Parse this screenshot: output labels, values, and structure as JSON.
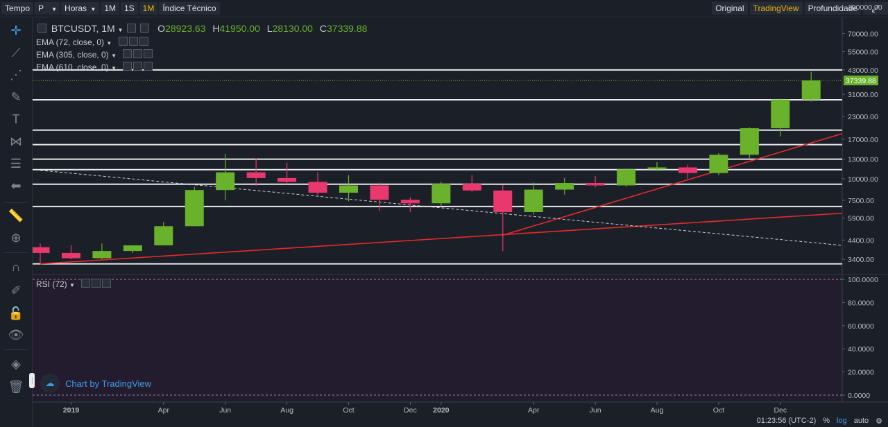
{
  "toolbar": {
    "tempo": "Tempo",
    "p": "P",
    "horas": "Horas",
    "m1": "1M",
    "s1": "1S",
    "mm1": "1M",
    "indice": "Índice Técnico",
    "original": "Original",
    "tradingview": "TradingView",
    "profundidade": "Profundidade"
  },
  "legend": {
    "symbol": "BTCUSDT, 1M",
    "o_label": "O",
    "o_value": "28923.63",
    "h_label": "H",
    "h_value": "41950.00",
    "l_label": "L",
    "l_value": "28130.00",
    "c_label": "C",
    "c_value": "37339.88",
    "ema1": "EMA (72, close, 0)",
    "ema2": "EMA (305, close, 0)",
    "ema3": "EMA (610, close, 0)",
    "rsi": "RSI (72)"
  },
  "watermark": "Chart by TradingView",
  "bottom": {
    "time": "01:23:56 (UTC-2)",
    "percent": "%",
    "log": "log",
    "auto": "auto"
  },
  "colors": {
    "up": "#6ab12c",
    "down": "#e9386d",
    "trend": "#e8292b",
    "accent": "#f0b90b",
    "link": "#3d9ee8"
  },
  "chart_data": {
    "type": "candlestick",
    "scale": "log",
    "symbol": "BTCUSDT",
    "interval": "1M",
    "y_ticks": [
      100000,
      70000,
      55000,
      43000,
      31000,
      23000,
      17000,
      13000,
      10000,
      7500,
      5900,
      4400,
      3400
    ],
    "y_tick_labels": [
      "100000.00",
      "70000.00",
      "55000.00",
      "43000.00",
      "31000.00",
      "23000.00",
      "17000.00",
      "13000.00",
      "10000.00",
      "7500.00",
      "5900.00",
      "4400.00",
      "3400.00"
    ],
    "last_price_label": "37339.88",
    "x_labels": [
      "2019",
      "Apr",
      "Jun",
      "Aug",
      "Oct",
      "Dec",
      "2020",
      "Apr",
      "Jun",
      "Aug",
      "Oct",
      "Dec"
    ],
    "candles": [
      {
        "date": "2018-12",
        "o": 4000,
        "h": 4200,
        "l": 3200,
        "c": 3700
      },
      {
        "date": "2019-01",
        "o": 3700,
        "h": 4100,
        "l": 3400,
        "c": 3450
      },
      {
        "date": "2019-02",
        "o": 3450,
        "h": 4200,
        "l": 3400,
        "c": 3800
      },
      {
        "date": "2019-03",
        "o": 3800,
        "h": 4100,
        "l": 3700,
        "c": 4100
      },
      {
        "date": "2019-04",
        "o": 4100,
        "h": 5600,
        "l": 4100,
        "c": 5300
      },
      {
        "date": "2019-05",
        "o": 5300,
        "h": 9000,
        "l": 5300,
        "c": 8600
      },
      {
        "date": "2019-06",
        "o": 8600,
        "h": 14000,
        "l": 7500,
        "c": 10900
      },
      {
        "date": "2019-07",
        "o": 10900,
        "h": 13200,
        "l": 9100,
        "c": 10100
      },
      {
        "date": "2019-08",
        "o": 10100,
        "h": 12400,
        "l": 9300,
        "c": 9600
      },
      {
        "date": "2019-09",
        "o": 9600,
        "h": 10900,
        "l": 7900,
        "c": 8300
      },
      {
        "date": "2019-10",
        "o": 8300,
        "h": 10500,
        "l": 7400,
        "c": 9150
      },
      {
        "date": "2019-11",
        "o": 9150,
        "h": 9500,
        "l": 6500,
        "c": 7550
      },
      {
        "date": "2019-12",
        "o": 7550,
        "h": 7800,
        "l": 6400,
        "c": 7200
      },
      {
        "date": "2020-01",
        "o": 7200,
        "h": 9600,
        "l": 6900,
        "c": 9350
      },
      {
        "date": "2020-02",
        "o": 9350,
        "h": 10500,
        "l": 8400,
        "c": 8550
      },
      {
        "date": "2020-03",
        "o": 8550,
        "h": 9200,
        "l": 3800,
        "c": 6400
      },
      {
        "date": "2020-04",
        "o": 6400,
        "h": 9500,
        "l": 6200,
        "c": 8650
      },
      {
        "date": "2020-05",
        "o": 8650,
        "h": 10100,
        "l": 8100,
        "c": 9450
      },
      {
        "date": "2020-06",
        "o": 9450,
        "h": 10400,
        "l": 8900,
        "c": 9150
      },
      {
        "date": "2020-07",
        "o": 9150,
        "h": 11500,
        "l": 9000,
        "c": 11350
      },
      {
        "date": "2020-08",
        "o": 11350,
        "h": 12500,
        "l": 11100,
        "c": 11650
      },
      {
        "date": "2020-09",
        "o": 11650,
        "h": 12100,
        "l": 10000,
        "c": 10800
      },
      {
        "date": "2020-10",
        "o": 10800,
        "h": 14100,
        "l": 10500,
        "c": 13800
      },
      {
        "date": "2020-11",
        "o": 13800,
        "h": 19900,
        "l": 13200,
        "c": 19700
      },
      {
        "date": "2020-12",
        "o": 19700,
        "h": 29300,
        "l": 17600,
        "c": 28900
      },
      {
        "date": "2021-01",
        "o": 28923.63,
        "h": 41950,
        "l": 28130,
        "c": 37339.88
      }
    ],
    "horizontal_levels": [
      3200,
      6900,
      9300,
      11300,
      13000,
      15800,
      19200,
      28800,
      43000
    ],
    "trendlines": [
      {
        "style": "solid",
        "color": "red",
        "from": {
          "date": "2018-12",
          "price": 3200
        },
        "to": {
          "date": "2021-02",
          "price": 6300
        }
      },
      {
        "style": "solid",
        "color": "red",
        "from": {
          "date": "2020-03",
          "price": 4700
        },
        "to": {
          "date": "2021-02",
          "price": 18300
        }
      },
      {
        "style": "dashed",
        "color": "white",
        "from": {
          "date": "2018-12",
          "price": 11200
        },
        "to": {
          "date": "2021-02",
          "price": 4100
        }
      }
    ],
    "rsi": {
      "label": "RSI (72)",
      "y_ticks": [
        100,
        80,
        60,
        40,
        20,
        0
      ],
      "y_tick_labels": [
        "100.0000",
        "80.0000",
        "60.0000",
        "40.0000",
        "20.0000",
        "0.0000"
      ],
      "bands": [
        100,
        0
      ]
    }
  }
}
